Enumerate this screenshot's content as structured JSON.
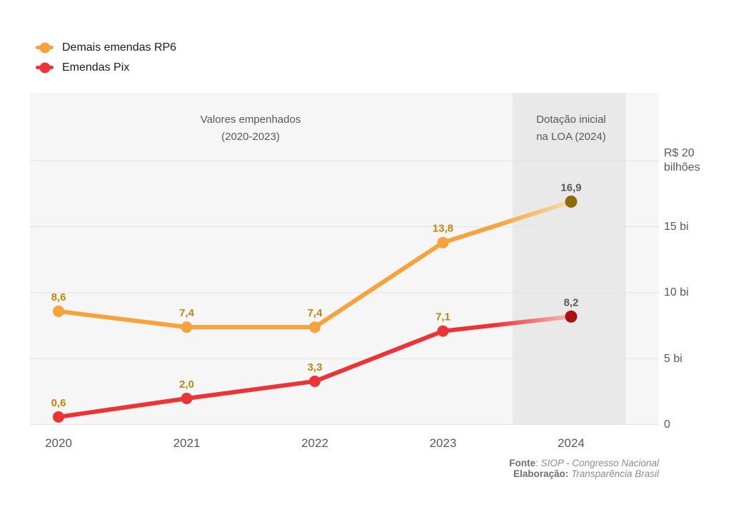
{
  "chart_data": {
    "type": "line",
    "x_categories": [
      "2020",
      "2021",
      "2022",
      "2023",
      "2024"
    ],
    "series": [
      {
        "name": "Demais emendas RP6",
        "values": [
          8.6,
          7.4,
          7.4,
          13.8,
          16.9
        ],
        "display_labels": [
          "8,6",
          "7,4",
          "7,4",
          "13,8",
          "16,9"
        ],
        "color": "#F7A23B",
        "fade_color": "#F6DCAE",
        "final_point_color": "#8F6A0A"
      },
      {
        "name": "Emendas Pix",
        "values": [
          0.6,
          2.0,
          3.3,
          7.1,
          8.2
        ],
        "display_labels": [
          "0,6",
          "2,0",
          "3,3",
          "7,1",
          "8,2"
        ],
        "color": "#EC3437",
        "fade_color": "#F3BBB8",
        "final_point_color": "#AB1013"
      }
    ],
    "ylim": [
      0,
      20
    ],
    "yticks": [
      {
        "value": 0,
        "label": "0"
      },
      {
        "value": 5,
        "label": "5 bi"
      },
      {
        "value": 10,
        "label": "10 bi"
      },
      {
        "value": 15,
        "label": "15 bi"
      },
      {
        "value": 20,
        "label": "R$ 20\nbilhões"
      }
    ],
    "grid": true,
    "legend_position": "top-left",
    "label_color": "#BE860C",
    "final_label_color": "#595959",
    "grid_color": "#E2E2E2",
    "plot_bg": "#F6F6F6",
    "band_bg": "#E9E9E9",
    "annotations": {
      "left_region": {
        "line1": "Valores empenhados",
        "line2": "(2020-2023)"
      },
      "right_region": {
        "line1": "Dotação inicial",
        "line2": "na LOA (2024)"
      }
    }
  },
  "footer": {
    "line1": {
      "label": "Fonte",
      "sep": ": ",
      "value": "SIOP - Congresso Nacional"
    },
    "line2": {
      "label": "Elaboração:",
      "sep": " ",
      "value": "Transparência Brasil"
    }
  }
}
